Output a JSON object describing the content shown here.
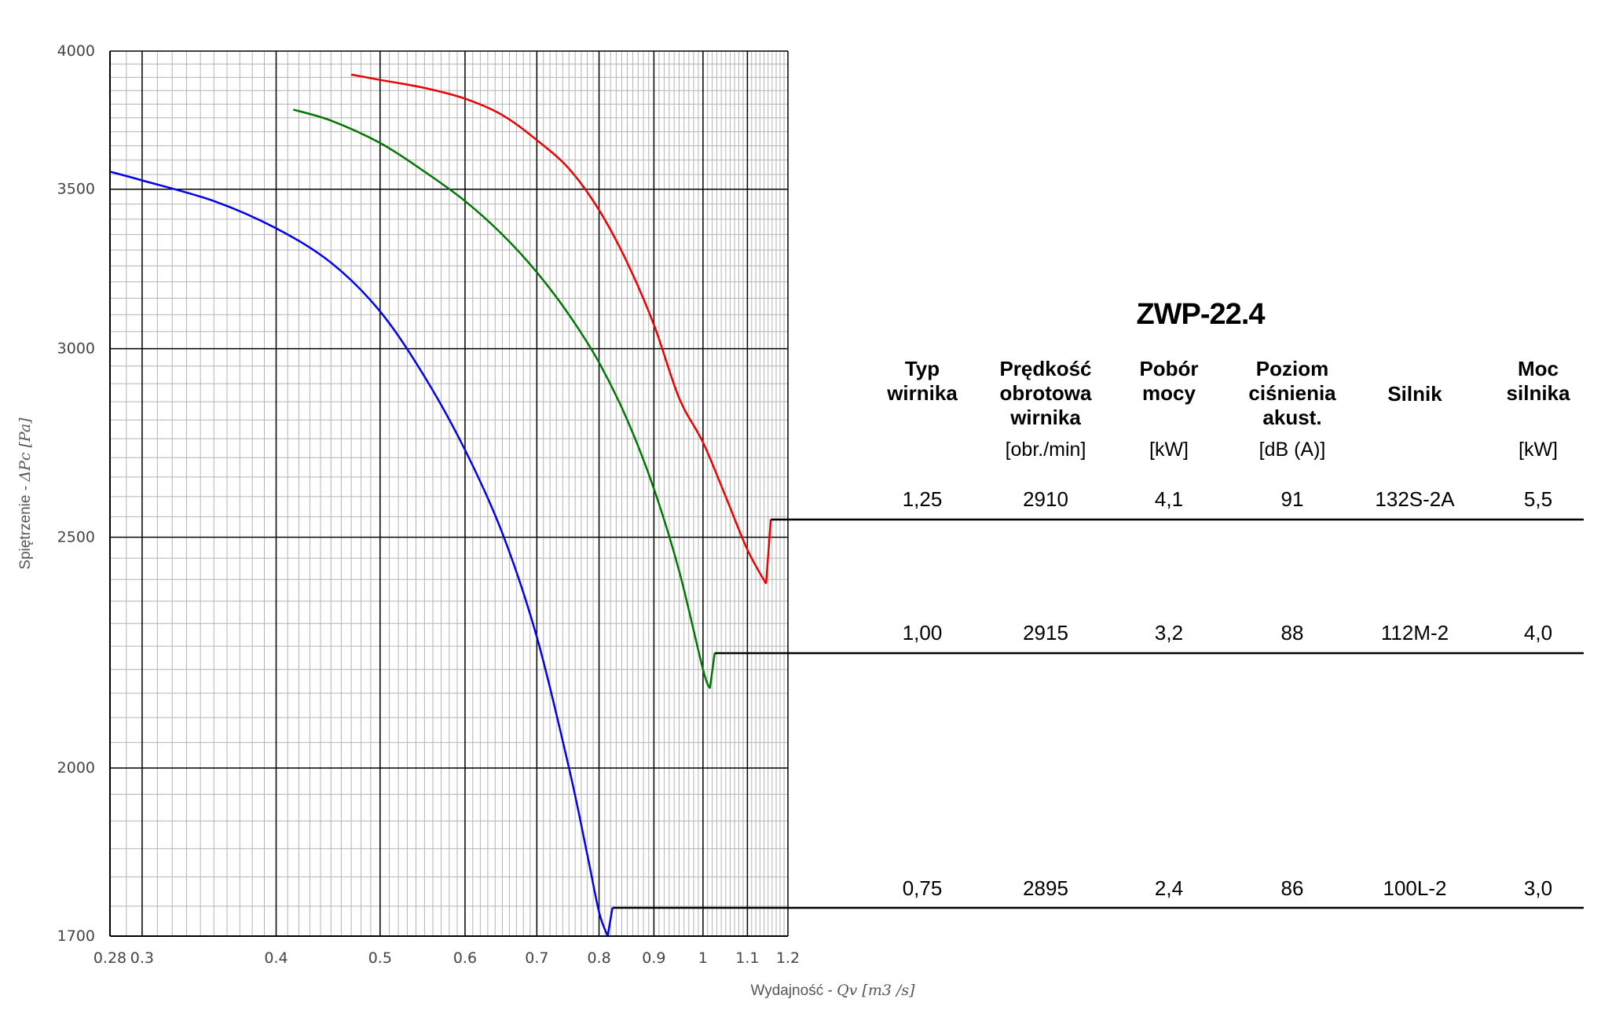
{
  "chart_data": {
    "type": "line",
    "xlabel_prefix": "Wydajność - ",
    "xlabel_symbol": "Qv [m3 /s]",
    "ylabel_prefix": "Spiętrzenie - ",
    "ylabel_symbol": "ΔPc [Pa]",
    "x_scale": "log",
    "y_scale": "log",
    "xlim": [
      0.28,
      1.2
    ],
    "ylim": [
      1700,
      4000
    ],
    "x_ticks": [
      {
        "v": 0.28,
        "label": "0.28"
      },
      {
        "v": 0.3,
        "label": "0.3"
      },
      {
        "v": 0.4,
        "label": "0.4"
      },
      {
        "v": 0.5,
        "label": "0.5"
      },
      {
        "v": 0.6,
        "label": "0.6"
      },
      {
        "v": 0.7,
        "label": "0.7"
      },
      {
        "v": 0.8,
        "label": "0.8"
      },
      {
        "v": 0.9,
        "label": "0.9"
      },
      {
        "v": 1.0,
        "label": "1"
      },
      {
        "v": 1.1,
        "label": "1.1"
      },
      {
        "v": 1.2,
        "label": "1.2"
      }
    ],
    "y_ticks": [
      {
        "v": 1700,
        "label": "1700"
      },
      {
        "v": 2000,
        "label": "2000"
      },
      {
        "v": 2500,
        "label": "2500"
      },
      {
        "v": 3000,
        "label": "3000"
      },
      {
        "v": 3500,
        "label": "3500"
      },
      {
        "v": 4000,
        "label": "4000"
      }
    ],
    "grid": true,
    "series": [
      {
        "color": "#0000ee",
        "x": [
          0.28,
          0.3,
          0.35,
          0.4,
          0.45,
          0.5,
          0.55,
          0.6,
          0.65,
          0.7,
          0.75,
          0.78,
          0.8,
          0.815
        ],
        "y": [
          3560,
          3530,
          3460,
          3370,
          3260,
          3110,
          2920,
          2720,
          2510,
          2270,
          2000,
          1840,
          1740,
          1700
        ],
        "end_x": 0.815,
        "end_y": 1700
      },
      {
        "color": "#007700",
        "x": [
          0.415,
          0.45,
          0.5,
          0.55,
          0.6,
          0.65,
          0.7,
          0.75,
          0.8,
          0.85,
          0.9,
          0.95,
          1.0,
          1.015
        ],
        "y": [
          3780,
          3740,
          3660,
          3560,
          3460,
          3350,
          3230,
          3100,
          2960,
          2800,
          2620,
          2420,
          2200,
          2160
        ],
        "end_x": 1.015,
        "end_y": 2160
      },
      {
        "color": "#ee0000",
        "x": [
          0.47,
          0.5,
          0.55,
          0.6,
          0.65,
          0.7,
          0.75,
          0.8,
          0.85,
          0.9,
          0.95,
          1.0,
          1.05,
          1.1,
          1.145
        ],
        "y": [
          3910,
          3890,
          3860,
          3820,
          3760,
          3670,
          3570,
          3430,
          3260,
          3070,
          2860,
          2740,
          2600,
          2470,
          2390
        ],
        "end_x": 1.145,
        "end_y": 2390
      }
    ]
  },
  "table": {
    "title": "ZWP-22.4",
    "headers": [
      {
        "lines": [
          "Typ",
          "wirnika"
        ],
        "unit": ""
      },
      {
        "lines": [
          "Prędkość",
          "obrotowa",
          "wirnika"
        ],
        "unit": "[obr./min]"
      },
      {
        "lines": [
          "Pobór",
          "mocy"
        ],
        "unit": "[kW]"
      },
      {
        "lines": [
          "Poziom",
          "ciśnienia",
          "akust."
        ],
        "unit": "[dB (A)]"
      },
      {
        "lines": [
          "Silnik"
        ],
        "unit": ""
      },
      {
        "lines": [
          "Moc",
          "silnika"
        ],
        "unit": "[kW]"
      }
    ],
    "rows": [
      [
        "1,25",
        "2910",
        "4,1",
        "91",
        "132S-2A",
        "5,5"
      ],
      [
        "1,00",
        "2915",
        "3,2",
        "88",
        "112M-2",
        "4,0"
      ],
      [
        "0,75",
        "2895",
        "2,4",
        "86",
        "100L-2",
        "3,0"
      ]
    ]
  }
}
